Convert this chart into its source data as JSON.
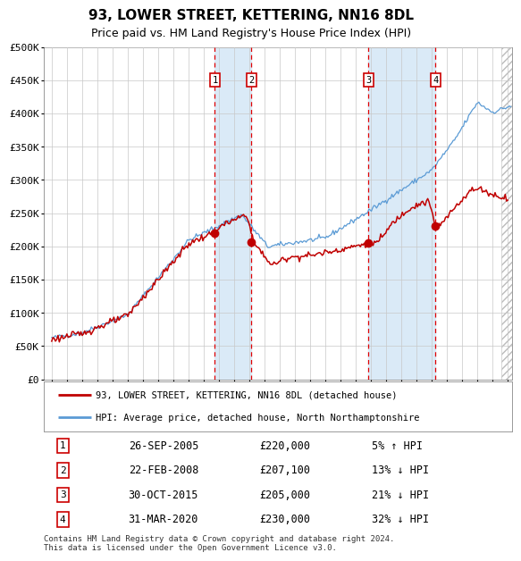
{
  "title": "93, LOWER STREET, KETTERING, NN16 8DL",
  "subtitle": "Price paid vs. HM Land Registry's House Price Index (HPI)",
  "xlim": [
    1994.5,
    2025.3
  ],
  "ylim": [
    0,
    500000
  ],
  "yticks": [
    0,
    50000,
    100000,
    150000,
    200000,
    250000,
    300000,
    350000,
    400000,
    450000,
    500000
  ],
  "ytick_labels": [
    "£0",
    "£50K",
    "£100K",
    "£150K",
    "£200K",
    "£250K",
    "£300K",
    "£350K",
    "£400K",
    "£450K",
    "£500K"
  ],
  "xtick_years": [
    1995,
    1996,
    1997,
    1998,
    1999,
    2000,
    2001,
    2002,
    2003,
    2004,
    2005,
    2006,
    2007,
    2008,
    2009,
    2010,
    2011,
    2012,
    2013,
    2014,
    2015,
    2016,
    2017,
    2018,
    2019,
    2020,
    2021,
    2022,
    2023,
    2024,
    2025
  ],
  "hpi_color": "#5b9bd5",
  "price_color": "#c00000",
  "vline_color": "#e00000",
  "shade_color": "#daeaf7",
  "sale_dates": [
    2005.733,
    2008.138,
    2015.833,
    2020.247
  ],
  "sale_prices": [
    220000,
    207100,
    205000,
    230000
  ],
  "sale_labels": [
    "1",
    "2",
    "3",
    "4"
  ],
  "vline_pairs": [
    [
      2005.733,
      2008.138
    ],
    [
      2015.833,
      2020.247
    ]
  ],
  "legend_entries": [
    "93, LOWER STREET, KETTERING, NN16 8DL (detached house)",
    "HPI: Average price, detached house, North Northamptonshire"
  ],
  "table_rows": [
    [
      "1",
      "26-SEP-2005",
      "£220,000",
      "5% ↑ HPI"
    ],
    [
      "2",
      "22-FEB-2008",
      "£207,100",
      "13% ↓ HPI"
    ],
    [
      "3",
      "30-OCT-2015",
      "£205,000",
      "21% ↓ HPI"
    ],
    [
      "4",
      "31-MAR-2020",
      "£230,000",
      "32% ↓ HPI"
    ]
  ],
  "footer": "Contains HM Land Registry data © Crown copyright and database right 2024.\nThis data is licensed under the Open Government Licence v3.0.",
  "background_color": "#ffffff",
  "grid_color": "#c8c8c8"
}
